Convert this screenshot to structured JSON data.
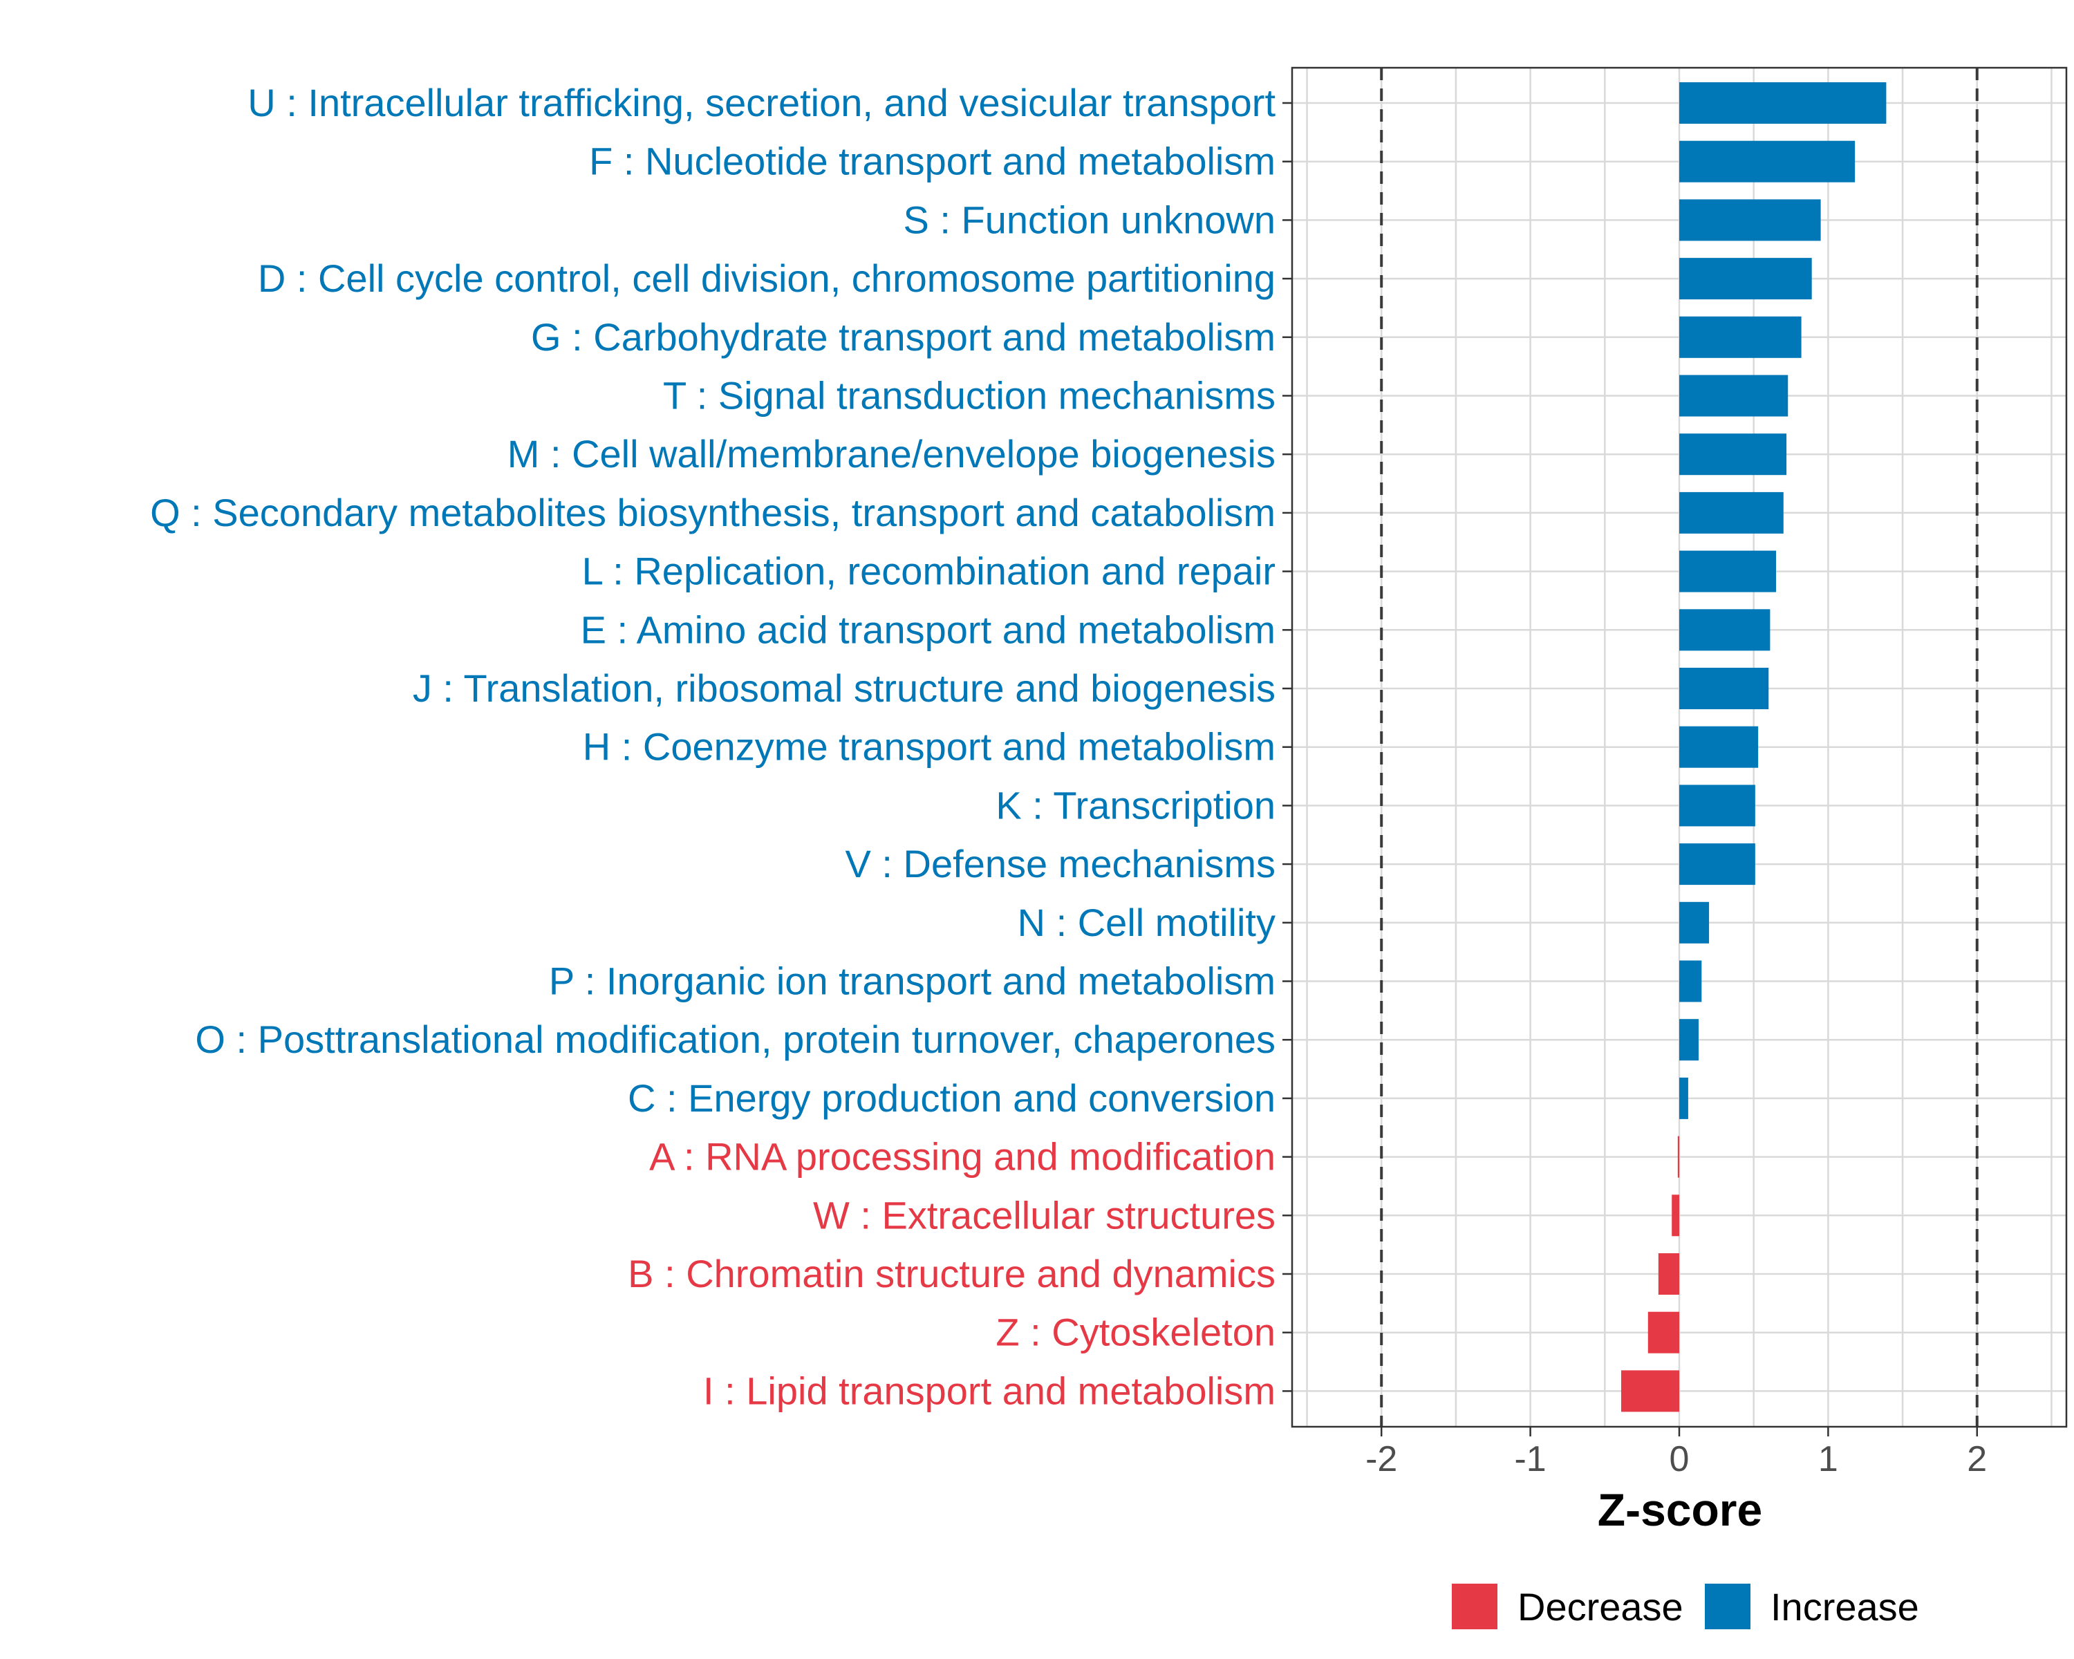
{
  "chart_data": {
    "type": "bar",
    "orientation": "horizontal",
    "title": "",
    "xlabel": "Z-score",
    "ylabel": "",
    "xlim": [
      -2.6,
      2.6
    ],
    "xticks": [
      -2,
      -1,
      0,
      1,
      2
    ],
    "xtick_labels": [
      "-2",
      "-1",
      "0",
      "1",
      "2"
    ],
    "reference_lines": [
      -2,
      2
    ],
    "grid": true,
    "legend_position": "bottom",
    "colors": {
      "Decrease": "#e63946",
      "Increase": "#0077b6"
    },
    "legend": [
      "Decrease",
      "Increase"
    ],
    "categories": [
      "U : Intracellular trafficking, secretion, and vesicular transport",
      "F : Nucleotide transport and metabolism",
      "S : Function unknown",
      "D : Cell cycle control, cell division, chromosome partitioning",
      "G : Carbohydrate transport and metabolism",
      "T : Signal transduction mechanisms",
      "M : Cell wall/membrane/envelope biogenesis",
      "Q : Secondary metabolites biosynthesis, transport and catabolism",
      "L : Replication, recombination and repair",
      "E : Amino acid transport and metabolism",
      "J : Translation, ribosomal structure and biogenesis",
      "H : Coenzyme transport and metabolism",
      "K : Transcription",
      "V : Defense mechanisms",
      "N : Cell motility",
      "P : Inorganic ion transport and metabolism",
      "O : Posttranslational modification, protein turnover, chaperones",
      "C : Energy production and conversion",
      "A : RNA processing and modification",
      "W : Extracellular structures",
      "B : Chromatin structure and dynamics",
      "Z : Cytoskeleton",
      "I : Lipid transport and metabolism"
    ],
    "values": [
      1.39,
      1.18,
      0.95,
      0.89,
      0.82,
      0.73,
      0.72,
      0.7,
      0.65,
      0.61,
      0.6,
      0.53,
      0.51,
      0.51,
      0.2,
      0.15,
      0.13,
      0.06,
      -0.01,
      -0.05,
      -0.14,
      -0.21,
      -0.39
    ],
    "groups": [
      "Increase",
      "Increase",
      "Increase",
      "Increase",
      "Increase",
      "Increase",
      "Increase",
      "Increase",
      "Increase",
      "Increase",
      "Increase",
      "Increase",
      "Increase",
      "Increase",
      "Increase",
      "Increase",
      "Increase",
      "Increase",
      "Decrease",
      "Decrease",
      "Decrease",
      "Decrease",
      "Decrease"
    ]
  }
}
